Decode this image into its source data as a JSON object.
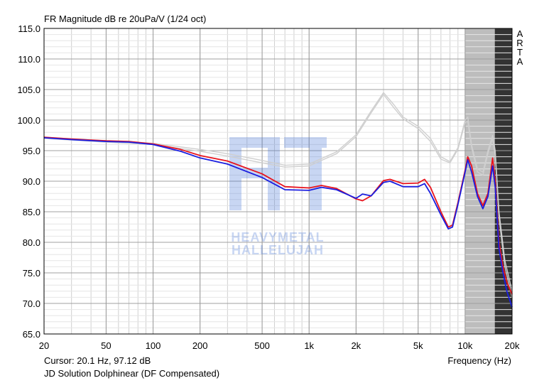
{
  "title": "FR Magnitude dB re 20uPa/V (1/24 oct)",
  "cursor_text": "Cursor: 20.1 Hz, 97.12 dB",
  "caption": "JD Solution Dolphinear (DF Compensated)",
  "xlabel": "Frequency (Hz)",
  "side_label": [
    "A",
    "R",
    "T",
    "A"
  ],
  "watermark": {
    "line1": "HEAVYMETAL",
    "line2": "HALLELUJAH"
  },
  "colors": {
    "red": "#e8141e",
    "blue": "#1a1ee0",
    "gray": "#cfcfcf",
    "shade": "#bdbdbd",
    "dark": "#333333"
  },
  "chart_data": {
    "type": "line",
    "x_scale": "log",
    "xlim": [
      20,
      20000
    ],
    "ylim": [
      65,
      115
    ],
    "x_ticks": [
      20,
      50,
      100,
      200,
      500,
      1000,
      2000,
      5000,
      10000,
      20000
    ],
    "x_tick_labels": [
      "20",
      "50",
      "100",
      "200",
      "500",
      "1k",
      "2k",
      "5k",
      "10k",
      "20k"
    ],
    "y_ticks": [
      65,
      70,
      75,
      80,
      85,
      90,
      95,
      100,
      105,
      110,
      115
    ],
    "y_tick_labels": [
      "65.0",
      "70.0",
      "75.0",
      "80.0",
      "85.0",
      "90.0",
      "95.0",
      "100.0",
      "105.0",
      "110.0",
      "115.0"
    ],
    "shaded_regions": [
      {
        "from": 10000,
        "to": 15500,
        "style": "light"
      },
      {
        "from": 15500,
        "to": 20000,
        "style": "dark"
      }
    ],
    "series": [
      {
        "color": "red",
        "points": [
          [
            20,
            97.2
          ],
          [
            30,
            96.9
          ],
          [
            50,
            96.6
          ],
          [
            70,
            96.5
          ],
          [
            100,
            96.1
          ],
          [
            150,
            95.2
          ],
          [
            200,
            94.2
          ],
          [
            300,
            93.3
          ],
          [
            500,
            91.2
          ],
          [
            700,
            89.1
          ],
          [
            1000,
            88.9
          ],
          [
            1200,
            89.3
          ],
          [
            1500,
            88.8
          ],
          [
            2000,
            87.1
          ],
          [
            2200,
            86.8
          ],
          [
            2500,
            87.6
          ],
          [
            3000,
            90.1
          ],
          [
            3300,
            90.3
          ],
          [
            4000,
            89.6
          ],
          [
            5000,
            89.7
          ],
          [
            5500,
            90.3
          ],
          [
            6000,
            89.0
          ],
          [
            7000,
            85.0
          ],
          [
            7800,
            82.5
          ],
          [
            8300,
            82.8
          ],
          [
            9000,
            86.5
          ],
          [
            10000,
            91.8
          ],
          [
            10400,
            94.0
          ],
          [
            11000,
            92.5
          ],
          [
            12000,
            88.0
          ],
          [
            13000,
            86.0
          ],
          [
            14000,
            88.0
          ],
          [
            15000,
            93.8
          ],
          [
            15600,
            90.0
          ],
          [
            16500,
            80.0
          ],
          [
            17500,
            76.0
          ],
          [
            18500,
            73.5
          ],
          [
            20000,
            71.5
          ]
        ]
      },
      {
        "color": "blue",
        "points": [
          [
            20,
            97.1
          ],
          [
            30,
            96.8
          ],
          [
            50,
            96.5
          ],
          [
            70,
            96.4
          ],
          [
            100,
            96.0
          ],
          [
            150,
            94.9
          ],
          [
            200,
            93.8
          ],
          [
            300,
            92.8
          ],
          [
            500,
            90.6
          ],
          [
            700,
            88.6
          ],
          [
            1000,
            88.5
          ],
          [
            1200,
            89.0
          ],
          [
            1500,
            88.6
          ],
          [
            2000,
            87.2
          ],
          [
            2200,
            87.9
          ],
          [
            2500,
            87.6
          ],
          [
            3000,
            89.8
          ],
          [
            3300,
            90.0
          ],
          [
            4000,
            89.1
          ],
          [
            5000,
            89.1
          ],
          [
            5500,
            89.6
          ],
          [
            6000,
            88.0
          ],
          [
            7000,
            84.5
          ],
          [
            7800,
            82.2
          ],
          [
            8300,
            82.5
          ],
          [
            9000,
            86.2
          ],
          [
            10000,
            91.5
          ],
          [
            10400,
            93.5
          ],
          [
            11000,
            91.5
          ],
          [
            12000,
            87.5
          ],
          [
            13000,
            85.5
          ],
          [
            14000,
            87.5
          ],
          [
            15000,
            92.5
          ],
          [
            15600,
            89.0
          ],
          [
            16500,
            79.0
          ],
          [
            17500,
            75.0
          ],
          [
            18500,
            72.0
          ],
          [
            20000,
            69.4
          ]
        ]
      },
      {
        "color": "gray",
        "points": [
          [
            20,
            97.2
          ],
          [
            50,
            96.6
          ],
          [
            100,
            96.2
          ],
          [
            200,
            95.2
          ],
          [
            300,
            94.5
          ],
          [
            500,
            93.4
          ],
          [
            700,
            92.6
          ],
          [
            1000,
            92.8
          ],
          [
            1500,
            94.8
          ],
          [
            2000,
            97.6
          ],
          [
            2500,
            101.5
          ],
          [
            3000,
            104.5
          ],
          [
            3500,
            102.5
          ],
          [
            4000,
            100.5
          ],
          [
            5000,
            99.0
          ],
          [
            6000,
            97.0
          ],
          [
            7000,
            94.0
          ],
          [
            8000,
            93.2
          ],
          [
            9000,
            95.5
          ],
          [
            10000,
            100.0
          ],
          [
            10400,
            100.5
          ],
          [
            11000,
            96.0
          ],
          [
            12000,
            92.0
          ],
          [
            13000,
            91.5
          ],
          [
            14000,
            95.0
          ],
          [
            15000,
            97.5
          ],
          [
            15600,
            95.0
          ],
          [
            16500,
            85.0
          ],
          [
            18000,
            77.0
          ],
          [
            20000,
            72.0
          ]
        ]
      },
      {
        "color": "gray",
        "points": [
          [
            20,
            97.0
          ],
          [
            50,
            96.4
          ],
          [
            100,
            96.0
          ],
          [
            200,
            94.9
          ],
          [
            300,
            94.1
          ],
          [
            500,
            93.0
          ],
          [
            700,
            92.3
          ],
          [
            1000,
            92.5
          ],
          [
            1500,
            94.5
          ],
          [
            2000,
            97.3
          ],
          [
            2500,
            101.2
          ],
          [
            3000,
            104.2
          ],
          [
            3500,
            102.0
          ],
          [
            4000,
            100.2
          ],
          [
            5000,
            98.6
          ],
          [
            6000,
            96.5
          ],
          [
            7000,
            93.6
          ],
          [
            8000,
            93.0
          ],
          [
            9000,
            95.2
          ],
          [
            10000,
            99.6
          ],
          [
            10400,
            99.8
          ],
          [
            11000,
            95.5
          ],
          [
            12000,
            91.5
          ],
          [
            13000,
            91.0
          ],
          [
            14000,
            94.5
          ],
          [
            15000,
            97.0
          ],
          [
            15600,
            94.2
          ],
          [
            16500,
            84.0
          ],
          [
            18000,
            76.0
          ],
          [
            20000,
            71.0
          ]
        ]
      }
    ]
  }
}
